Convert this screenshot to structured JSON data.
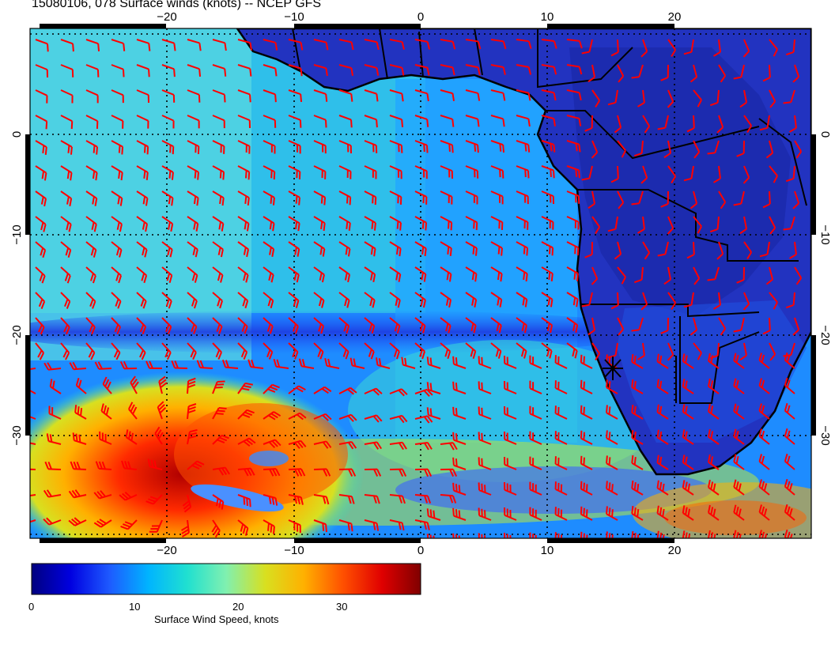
{
  "title": "15080106, 078 Surface winds (knots) -- NCEP GFS",
  "map": {
    "lon_range": [
      -30,
      31
    ],
    "lat_range": [
      -40,
      10
    ],
    "lon_ticks_top": [
      "−20",
      "−10",
      "0",
      "10",
      "20"
    ],
    "lon_ticks_bottom": [
      "−20",
      "−10",
      "0",
      "10",
      "20"
    ],
    "lat_ticks": [
      "0",
      "−10",
      "−20",
      "−30"
    ],
    "marker": {
      "name": "site-marker",
      "lon": 15,
      "lat": -23.3
    }
  },
  "colorbar": {
    "title": "Surface Wind Speed, knots",
    "tick_labels": [
      "0",
      "10",
      "20",
      "30"
    ],
    "range": [
      0,
      37.5
    ],
    "colors": [
      "#00007f",
      "#0000e0",
      "#1e5aff",
      "#00b4ff",
      "#20e0d0",
      "#80f0b0",
      "#d8e020",
      "#ffb000",
      "#ff5000",
      "#e00000",
      "#7f0000"
    ]
  },
  "styles": {
    "barb_color": "#ff0000",
    "land_color": "#2a35c8",
    "ocean_base": "#1e7aff"
  }
}
